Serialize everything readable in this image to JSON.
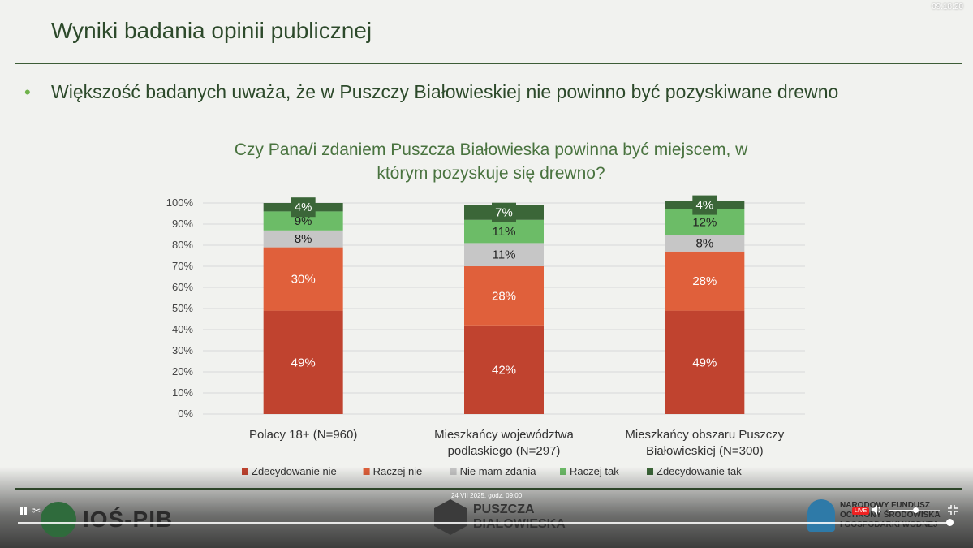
{
  "player": {
    "clock": "09:18:20",
    "date_stamp": "24 VII 2025, godz. 09:00",
    "live_label": "LIVE",
    "play_pause_icon": "pause-icon",
    "cut_icon": "scissors-icon",
    "volume_icon": "volume-icon",
    "fullscreen_icon": "fullscreen-exit-icon",
    "progress_fraction": 0.995,
    "volume_fraction": 0.5
  },
  "slide": {
    "title": "Wyniki badania opinii publicznej",
    "bullet": "•",
    "bullet_text": "Większość badanych uważa, że w Puszczy Białowieskiej nie powinno być pozyskiwane drewno"
  },
  "logos": {
    "ios": "IOŚ-PIB",
    "puszcza_line1": "PUSZCZA",
    "puszcza_line2": "BIAŁOWIESKA",
    "nfos_line1": "NARODOWY FUNDUSZ",
    "nfos_line2": "OCHRONY ŚRODOWISKA",
    "nfos_line3": "I GOSPODARKI WODNEJ"
  },
  "colors": {
    "title_green": "#2d4a2b",
    "bullet_green": "#6fb24a",
    "chart_title_green": "#49733f"
  },
  "chart_data": {
    "type": "bar",
    "stacked": true,
    "title_line1": "Czy Pana/i zdaniem Puszcza Białowieska powinna być miejscem, w",
    "title_line2": "którym pozyskuje się drewno?",
    "ylim": [
      0,
      100
    ],
    "y_ticks": [
      "0%",
      "10%",
      "20%",
      "30%",
      "40%",
      "50%",
      "60%",
      "70%",
      "80%",
      "90%",
      "100%"
    ],
    "categories": [
      [
        "Polacy 18+ (N=960)"
      ],
      [
        "Mieszkańcy województwa",
        "podlaskiego (N=297)"
      ],
      [
        "Mieszkańcy obszaru Puszczy",
        "Białowieskiej (N=300)"
      ]
    ],
    "series": [
      {
        "name": "Zdecydowanie nie",
        "color": "#c0432f",
        "label_color": "#ffffff",
        "values": [
          49,
          42,
          49
        ],
        "labels": [
          "49%",
          "42%",
          "49%"
        ]
      },
      {
        "name": "Raczej nie",
        "color": "#e0603b",
        "label_color": "#ffffff",
        "values": [
          30,
          28,
          28
        ],
        "labels": [
          "30%",
          "28%",
          "28%"
        ]
      },
      {
        "name": "Nie mam zdania",
        "color": "#c6c6c6",
        "label_color": "#222222",
        "values": [
          8,
          11,
          8
        ],
        "labels": [
          "8%",
          "11%",
          "8%"
        ]
      },
      {
        "name": "Raczej tak",
        "color": "#6cbc67",
        "label_color": "#222222",
        "values": [
          9,
          11,
          12
        ],
        "labels": [
          "9%",
          "11%",
          "12%"
        ]
      },
      {
        "name": "Zdecydowanie tak",
        "color": "#3b6638",
        "label_color": "#ffffff",
        "values": [
          4,
          7,
          4
        ],
        "labels": [
          "4%",
          "7%",
          "4%"
        ]
      }
    ],
    "legend_position": "bottom",
    "grid": true
  }
}
